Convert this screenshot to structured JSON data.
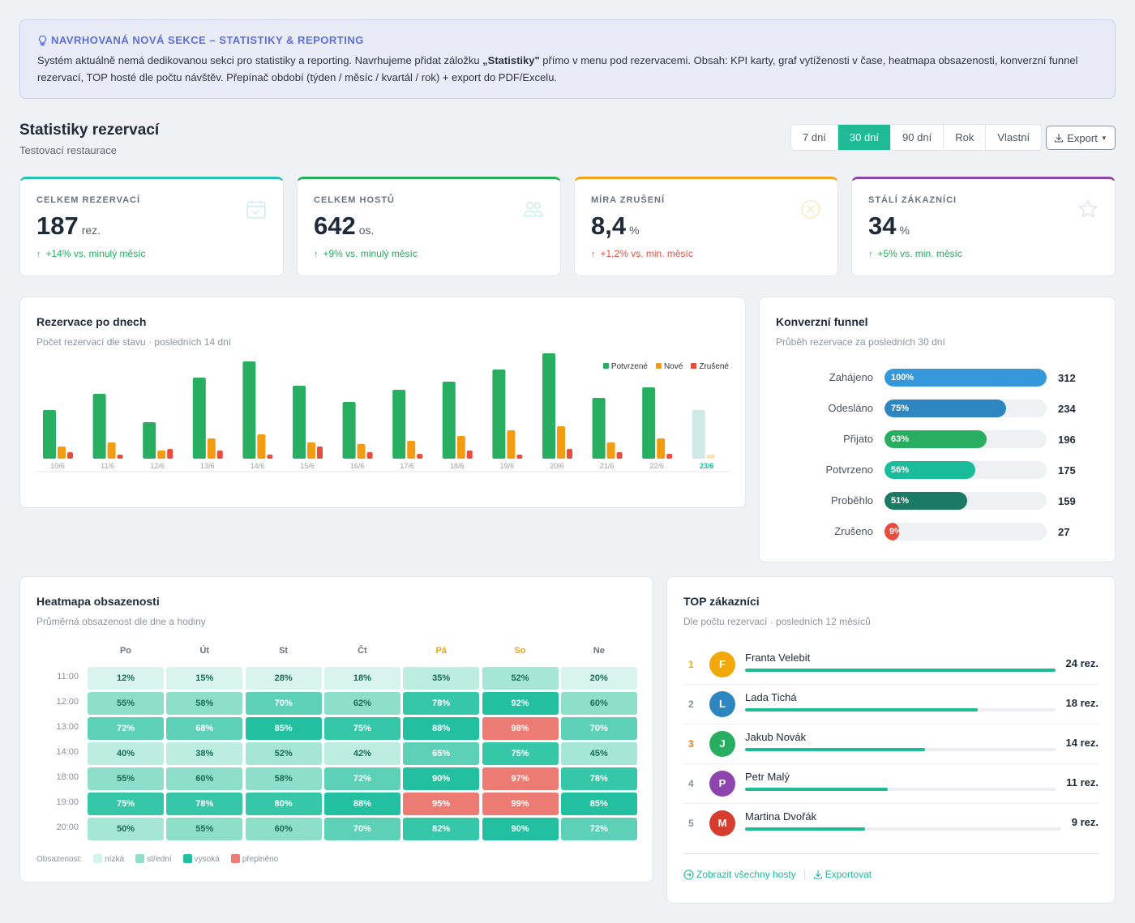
{
  "banner": {
    "title": "NAVRHOVANÁ NOVÁ SEKCE – STATISTIKY & REPORTING",
    "text_before": "Systém aktuálně nemá dedikovanou sekci pro statistiky a reporting. Navrhujeme přidat záložku ",
    "text_bold": "„Statistiky\"",
    "text_after": " přímo v menu pod rezervacemi. Obsah: KPI karty, graf vytíženosti v čase, heatmapa obsazenosti, konverzní funnel rezervací, TOP hosté dle počtu návštěv. Přepínač období (týden / měsíc / kvartál / rok) + export do PDF/Excelu."
  },
  "header": {
    "title": "Statistiky rezervací",
    "subtitle": "Testovací restaurace",
    "periods": [
      "7 dní",
      "30 dní",
      "90 dní",
      "Rok",
      "Vlastní"
    ],
    "active_period": "30 dní",
    "export_label": "Export"
  },
  "kpis": [
    {
      "label": "CELKEM REZERVACÍ",
      "value": "187",
      "unit": "rez.",
      "trend": "+14% vs. minulý měsíc",
      "direction": "up",
      "trend_color": "#1fae5b",
      "accent": "#27c1b1",
      "icon": "calendar-check-icon"
    },
    {
      "label": "CELKEM HOSTŮ",
      "value": "642",
      "unit": "os.",
      "trend": "+9% vs. minulý měsíc",
      "direction": "up",
      "trend_color": "#1fae5b",
      "accent": "#23ad5a",
      "icon": "users-icon"
    },
    {
      "label": "MÍRA ZRUŠENÍ",
      "value": "8,4",
      "unit": "%",
      "trend": "+1,2% vs. min. měsíc",
      "direction": "up",
      "trend_color": "#e74c3c",
      "accent": "#f0a31a",
      "icon": "cancel-circle-icon"
    },
    {
      "label": "STÁLÍ ZÁKAZNÍCI",
      "value": "34",
      "unit": "%",
      "trend": "+5% vs. min. měsíc",
      "direction": "up",
      "trend_color": "#1fae5b",
      "accent": "#8e44ad",
      "icon": "star-icon"
    }
  ],
  "bar_chart": {
    "title": "Rezervace po dnech",
    "subtitle": "Počet rezervací dle stavu · posledních 14 dní",
    "highlight_category": "23/6"
  },
  "chart_data": {
    "type": "bar",
    "categories": [
      "10/6",
      "11/6",
      "12/6",
      "13/6",
      "14/6",
      "15/6",
      "16/6",
      "17/6",
      "18/6",
      "19/6",
      "20/6",
      "21/6",
      "22/6",
      "23/6"
    ],
    "series": [
      {
        "name": "Potvrzené",
        "color": "#27ae60",
        "values": [
          12,
          16,
          9,
          20,
          24,
          18,
          14,
          17,
          19,
          22,
          26,
          15,
          17.6,
          12
        ]
      },
      {
        "name": "Nové",
        "color": "#f39c12",
        "values": [
          3,
          4,
          2,
          5,
          6,
          4,
          3.6,
          4.4,
          5.6,
          7,
          8,
          4,
          5,
          1
        ]
      },
      {
        "name": "Zrušené",
        "color": "#e74c3c",
        "values": [
          1.6,
          1,
          2.4,
          2,
          1,
          3,
          1.6,
          1.2,
          2,
          1,
          2.4,
          1.6,
          1.2,
          0
        ]
      }
    ],
    "ylim": [
      0,
      26
    ],
    "legend": "top-right"
  },
  "funnel": {
    "title": "Konverzní funnel",
    "subtitle": "Průběh rezervace za posledních 30 dní",
    "rows": [
      {
        "label": "Zahájeno",
        "pct": 100,
        "pct_label": "100%",
        "count": "312",
        "color": "#3498db"
      },
      {
        "label": "Odesláno",
        "pct": 75,
        "pct_label": "75%",
        "count": "234",
        "color": "#2e86c1"
      },
      {
        "label": "Přijato",
        "pct": 63,
        "pct_label": "63%",
        "count": "196",
        "color": "#27ae60"
      },
      {
        "label": "Potvrzeno",
        "pct": 56,
        "pct_label": "56%",
        "count": "175",
        "color": "#1abc9c"
      },
      {
        "label": "Proběhlo",
        "pct": 51,
        "pct_label": "51%",
        "count": "159",
        "color": "#1b7a63"
      },
      {
        "label": "Zrušeno",
        "pct": 9,
        "pct_label": "9%",
        "count": "27",
        "color": "#e74c3c"
      }
    ]
  },
  "heatmap": {
    "title": "Heatmapa obsazenosti",
    "subtitle": "Průměrná obsazenost dle dne a hodiny",
    "days": [
      "Po",
      "Út",
      "St",
      "Čt",
      "Pá",
      "So",
      "Ne"
    ],
    "weekend_days": [
      "Pá",
      "So"
    ],
    "times": [
      "11:00",
      "12:00",
      "13:00",
      "14:00",
      "18:00",
      "19:00",
      "20:00"
    ],
    "values": [
      [
        12,
        15,
        28,
        18,
        35,
        52,
        20
      ],
      [
        55,
        58,
        70,
        62,
        78,
        92,
        60
      ],
      [
        72,
        68,
        85,
        75,
        88,
        98,
        70
      ],
      [
        40,
        38,
        52,
        42,
        65,
        75,
        45
      ],
      [
        55,
        60,
        58,
        72,
        90,
        97,
        78
      ],
      [
        75,
        78,
        80,
        88,
        95,
        99,
        85
      ],
      [
        50,
        55,
        60,
        70,
        82,
        90,
        72
      ]
    ],
    "legend_label": "Obsazenost:",
    "legend": [
      {
        "label": "nízká",
        "color": "#d2f4ec"
      },
      {
        "label": "střední",
        "color": "#8edfca"
      },
      {
        "label": "vysoká",
        "color": "#22c0a0"
      },
      {
        "label": "přeplněno",
        "color": "#ec7c73"
      }
    ]
  },
  "top_customers": {
    "title": "TOP zákazníci",
    "subtitle": "Dle počtu rezervací · posledních 12 měsíců",
    "rows": [
      {
        "rank": "1",
        "initial": "F",
        "name": "Franta Velebit",
        "count": "24 rez.",
        "fraction": 1.0,
        "avatar_color": "#f1a80a",
        "rank_color": "#f1a80a"
      },
      {
        "rank": "2",
        "initial": "L",
        "name": "Lada Tichá",
        "count": "18 rez.",
        "fraction": 0.75,
        "avatar_color": "#2e86c1",
        "rank_color": "#8a919a"
      },
      {
        "rank": "3",
        "initial": "J",
        "name": "Jakub Novák",
        "count": "14 rez.",
        "fraction": 0.58,
        "avatar_color": "#27ae60",
        "rank_color": "#e67e22"
      },
      {
        "rank": "4",
        "initial": "P",
        "name": "Petr Malý",
        "count": "11 rez.",
        "fraction": 0.46,
        "avatar_color": "#8e44ad",
        "rank_color": "#8a919a"
      },
      {
        "rank": "5",
        "initial": "M",
        "name": "Martina Dvořák",
        "count": "9 rez.",
        "fraction": 0.38,
        "avatar_color": "#d63c2f",
        "rank_color": "#8a919a"
      }
    ],
    "show_all_label": "Zobrazit všechny hosty",
    "export_label": "Exportovat"
  }
}
